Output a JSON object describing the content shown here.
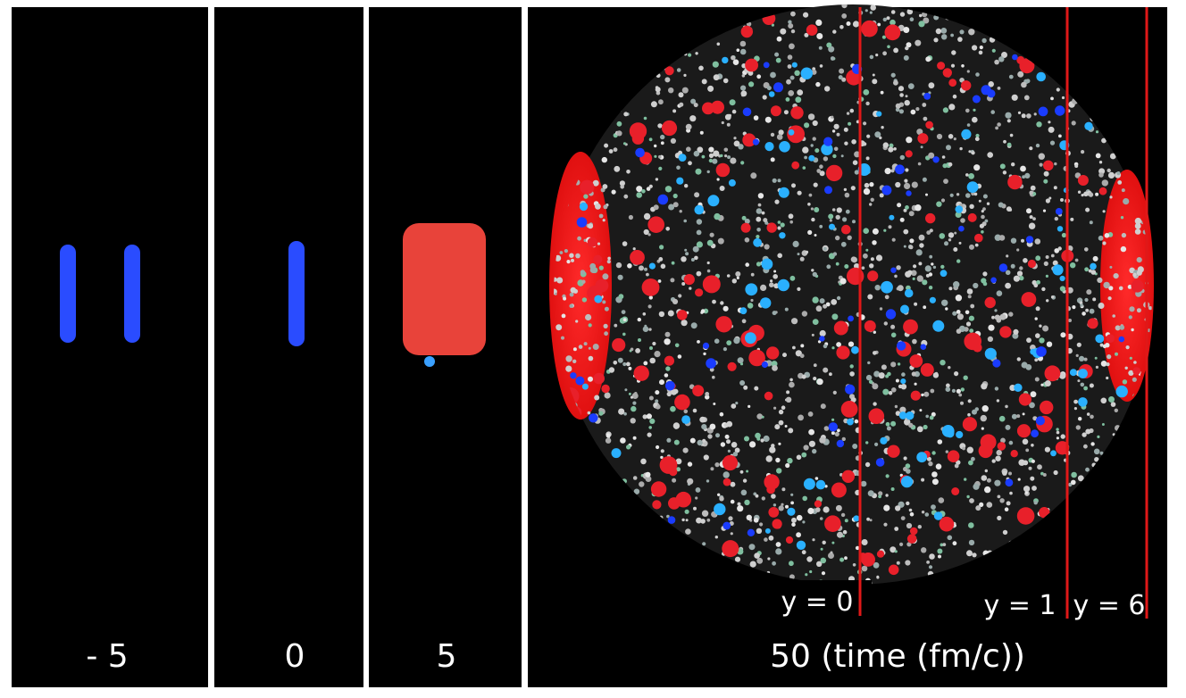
{
  "panels": [
    {
      "label": "- 5"
    },
    {
      "label": "0"
    },
    {
      "label": "5"
    },
    {
      "label": "50 (time (fm/c))"
    }
  ],
  "rapidity_lines": [
    {
      "label": "y = 0"
    },
    {
      "label": "y = 1"
    },
    {
      "label": "y = 6"
    }
  ]
}
